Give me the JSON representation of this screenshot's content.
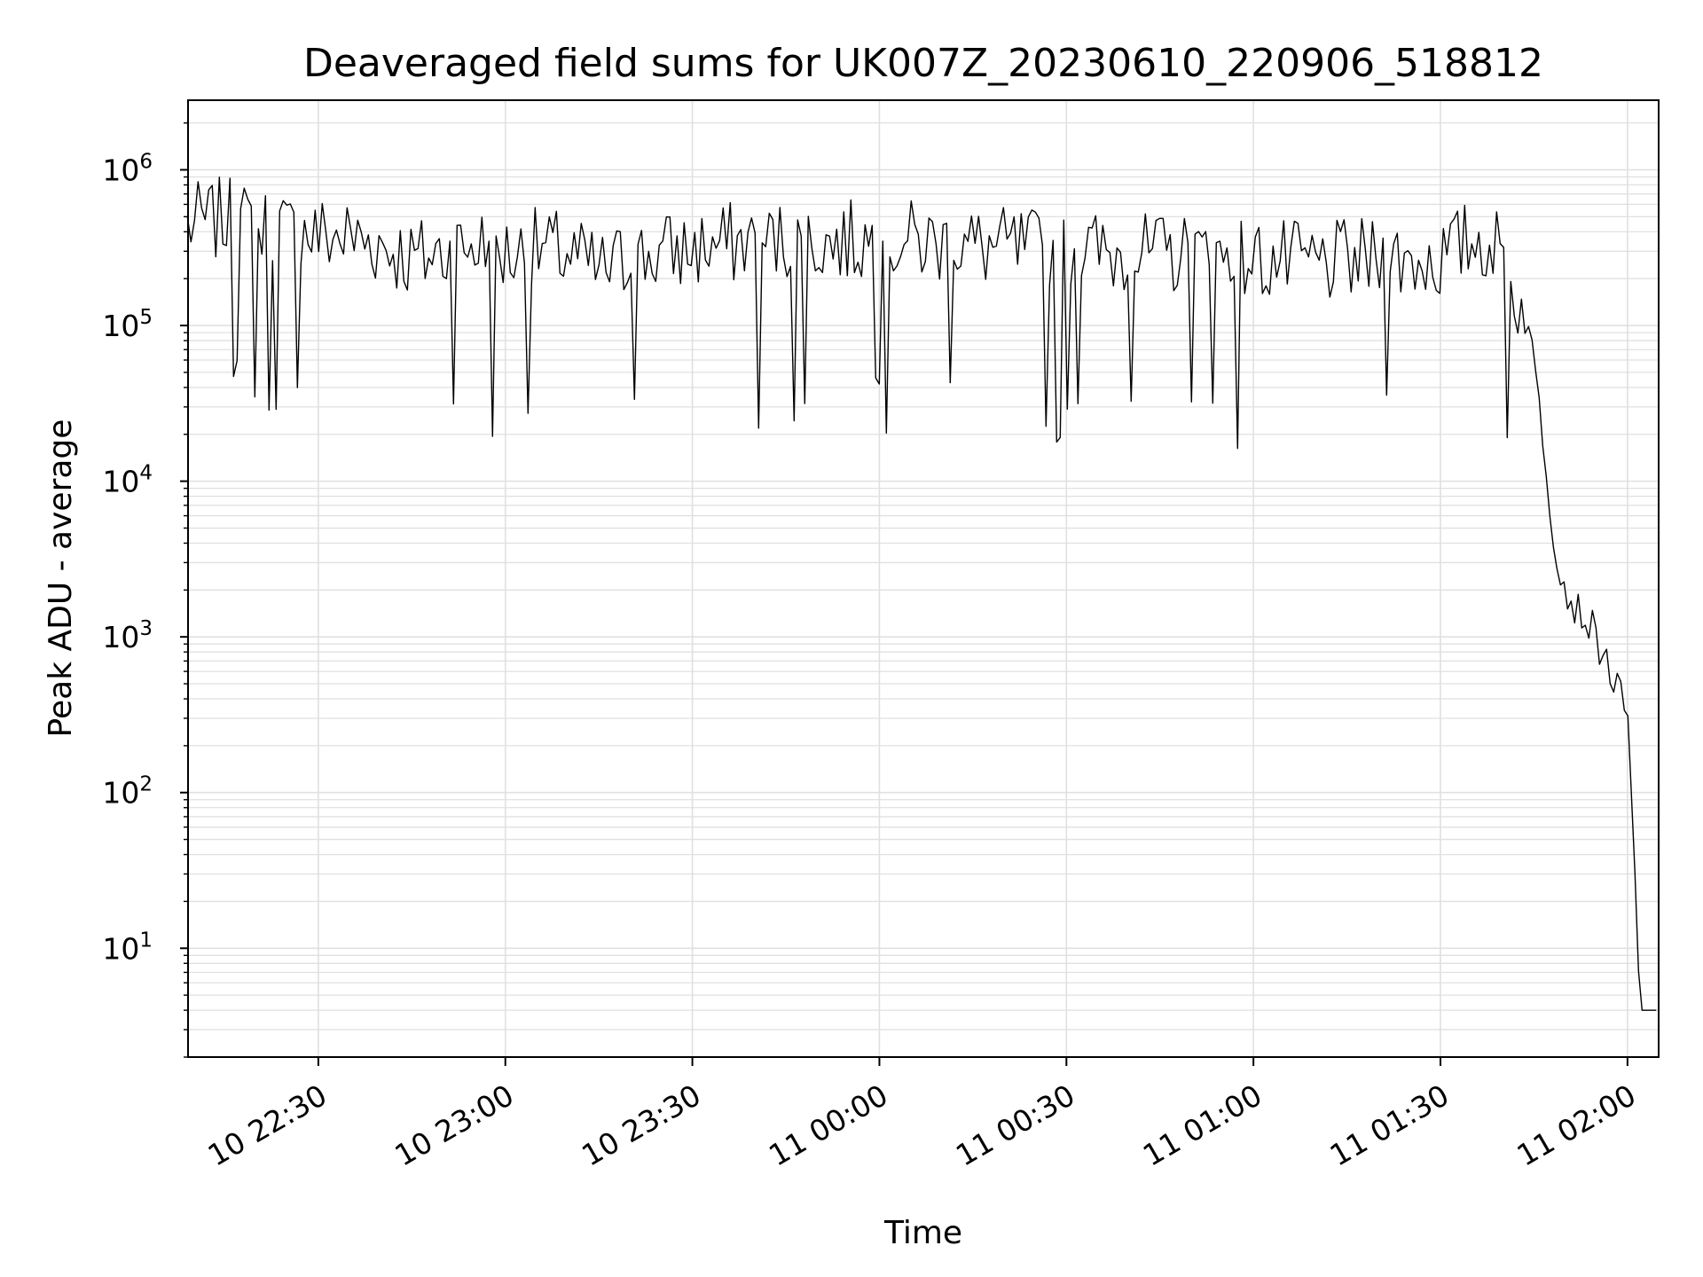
{
  "chart_data": {
    "type": "line",
    "title": "Deaveraged field sums for UK007Z_20230610_220906_518812",
    "xlabel": "Time",
    "ylabel": "Peak ADU - average",
    "x_axis": {
      "type": "datetime",
      "range": [
        "2023-06-10 22:09:06",
        "2023-06-11 02:05:00"
      ],
      "ticks": [
        "10 22:30",
        "10 23:00",
        "10 23:30",
        "11 00:00",
        "11 00:30",
        "11 01:00",
        "11 01:30",
        "11 02:00"
      ],
      "tick_values": [
        "2023-06-10 22:30",
        "2023-06-10 23:00",
        "2023-06-10 23:30",
        "2023-06-11 00:00",
        "2023-06-11 00:30",
        "2023-06-11 01:00",
        "2023-06-11 01:30",
        "2023-06-11 02:00"
      ]
    },
    "y_axis": {
      "scale": "log",
      "range": [
        2,
        2800000
      ],
      "tick_values": [
        10,
        100,
        1000,
        10000,
        100000,
        1000000
      ],
      "tick_labels": [
        {
          "base": "10",
          "exp": "1"
        },
        {
          "base": "10",
          "exp": "2"
        },
        {
          "base": "10",
          "exp": "3"
        },
        {
          "base": "10",
          "exp": "4"
        },
        {
          "base": "10",
          "exp": "5"
        },
        {
          "base": "10",
          "exp": "6"
        }
      ]
    },
    "grid": true,
    "line_color": "#000000",
    "grid_color": "#e0e0e0",
    "series": [
      {
        "x": [
          "2023-06-10 22:09",
          "2023-06-10 22:15",
          "2023-06-10 22:20",
          "2023-06-10 22:25",
          "2023-06-10 22:30",
          "2023-06-10 22:35",
          "2023-06-10 22:40",
          "2023-06-10 22:45",
          "2023-06-10 22:50",
          "2023-06-10 22:55",
          "2023-06-10 23:00",
          "2023-06-10 23:05",
          "2023-06-10 23:10",
          "2023-06-10 23:15",
          "2023-06-10 23:20",
          "2023-06-10 23:25",
          "2023-06-10 23:30",
          "2023-06-10 23:40",
          "2023-06-10 23:50",
          "2023-06-11 00:00",
          "2023-06-11 00:10",
          "2023-06-11 00:20",
          "2023-06-11 00:30",
          "2023-06-11 00:40",
          "2023-06-11 00:50",
          "2023-06-11 01:00",
          "2023-06-11 01:10",
          "2023-06-11 01:20",
          "2023-06-11 01:30",
          "2023-06-11 01:35",
          "2023-06-11 01:38",
          "2023-06-11 01:41",
          "2023-06-11 01:44",
          "2023-06-11 01:46",
          "2023-06-11 01:48",
          "2023-06-11 01:50",
          "2023-06-11 01:52",
          "2023-06-11 01:54",
          "2023-06-11 01:56",
          "2023-06-11 01:58",
          "2023-06-11 02:00",
          "2023-06-11 02:01",
          "2023-06-11 02:02",
          "2023-06-11 02:03",
          "2023-06-11 02:05"
        ],
        "y": [
          500000,
          550000,
          480000,
          450000,
          430000,
          420000,
          380000,
          300000,
          330000,
          380000,
          320000,
          350000,
          330000,
          250000,
          300000,
          330000,
          350000,
          400000,
          380000,
          400000,
          380000,
          350000,
          350000,
          320000,
          320000,
          300000,
          280000,
          300000,
          300000,
          400000,
          400000,
          250000,
          100000,
          30000,
          5000,
          2000,
          1500,
          1200,
          800,
          500,
          300,
          50,
          4,
          4,
          4
        ]
      }
    ]
  }
}
